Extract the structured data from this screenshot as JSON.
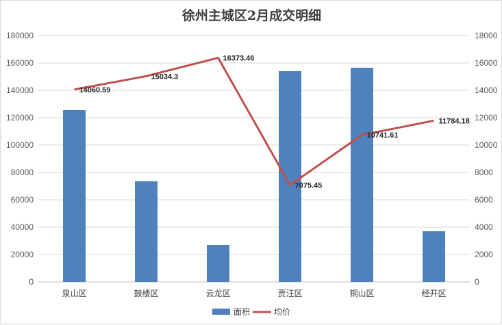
{
  "chart_data": {
    "type": "bar",
    "title": "徐州主城区2月成交明细",
    "categories": [
      "泉山区",
      "鼓楼区",
      "云龙区",
      "贾汪区",
      "铜山区",
      "经开区"
    ],
    "series": [
      {
        "name": "面积",
        "type": "bar",
        "axis": "left",
        "color": "#4f81bd",
        "values": [
          125500,
          73500,
          27000,
          154000,
          156500,
          37000
        ]
      },
      {
        "name": "均价",
        "type": "line",
        "axis": "right",
        "color": "#c0504d",
        "values": [
          14060.59,
          15034.3,
          16373.46,
          7075.45,
          10741.61,
          11784.18
        ],
        "labels": [
          "14060.59",
          "15034.3",
          "16373.46",
          "7075.45",
          "10741.61",
          "11784.18"
        ]
      }
    ],
    "y_left": {
      "min": 0,
      "max": 180000,
      "step": 20000
    },
    "y_right": {
      "min": 0,
      "max": 18000,
      "step": 2000
    },
    "grid": true,
    "legend": "bottom"
  }
}
